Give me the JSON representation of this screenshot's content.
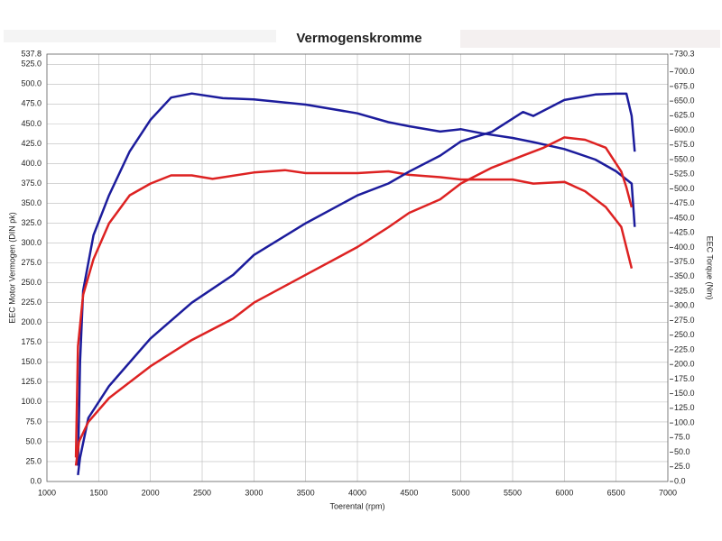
{
  "chart_data": {
    "type": "line",
    "title": "Vermogenskromme",
    "xlabel": "Toerental (rpm)",
    "ylabel": "EEC Motor Vermogen (DIN pk)",
    "y2label": "EEC Torque (Nm)",
    "xlim": [
      1000,
      7000
    ],
    "xticks": [
      1000,
      1500,
      2000,
      2500,
      3000,
      3500,
      4000,
      4500,
      5000,
      5500,
      6000,
      6500,
      7000
    ],
    "ylim": [
      0,
      537.8
    ],
    "yticks": [
      {
        "value": 0,
        "label": "0.0"
      },
      {
        "value": 25,
        "label": "25.0"
      },
      {
        "value": 50,
        "label": "50.0"
      },
      {
        "value": 75,
        "label": "75.0"
      },
      {
        "value": 100,
        "label": "100.0"
      },
      {
        "value": 125,
        "label": "125.0"
      },
      {
        "value": 150,
        "label": "150.0"
      },
      {
        "value": 175,
        "label": "175.0"
      },
      {
        "value": 200,
        "label": "200.0"
      },
      {
        "value": 225,
        "label": "225.0"
      },
      {
        "value": 250,
        "label": "250.0"
      },
      {
        "value": 275,
        "label": "275.0"
      },
      {
        "value": 300,
        "label": "300.0"
      },
      {
        "value": 325,
        "label": "325.0"
      },
      {
        "value": 350,
        "label": "350.0"
      },
      {
        "value": 375,
        "label": "375.0"
      },
      {
        "value": 400,
        "label": "400.0"
      },
      {
        "value": 425,
        "label": "425.0"
      },
      {
        "value": 450,
        "label": "450.0"
      },
      {
        "value": 475,
        "label": "475.0"
      },
      {
        "value": 500,
        "label": "500.0"
      },
      {
        "value": 525,
        "label": "525.0"
      },
      {
        "value": 537.8,
        "label": "537.8"
      }
    ],
    "y2lim": [
      0,
      730.3
    ],
    "y2ticks": [
      {
        "value": 0,
        "label": "0.0"
      },
      {
        "value": 25,
        "label": "25.0"
      },
      {
        "value": 50,
        "label": "50.0"
      },
      {
        "value": 75,
        "label": "75.0"
      },
      {
        "value": 100,
        "label": "100.0"
      },
      {
        "value": 125,
        "label": "125.0"
      },
      {
        "value": 150,
        "label": "150.0"
      },
      {
        "value": 175,
        "label": "175.0"
      },
      {
        "value": 200,
        "label": "200.0"
      },
      {
        "value": 225,
        "label": "225.0"
      },
      {
        "value": 250,
        "label": "250.0"
      },
      {
        "value": 275,
        "label": "275.0"
      },
      {
        "value": 300,
        "label": "300.0"
      },
      {
        "value": 325,
        "label": "325.0"
      },
      {
        "value": 350,
        "label": "350.0"
      },
      {
        "value": 375,
        "label": "375.0"
      },
      {
        "value": 400,
        "label": "400.0"
      },
      {
        "value": 425,
        "label": "425.0"
      },
      {
        "value": 450,
        "label": "450.0"
      },
      {
        "value": 475,
        "label": "475.0"
      },
      {
        "value": 500,
        "label": "500.0"
      },
      {
        "value": 525,
        "label": "525.0"
      },
      {
        "value": 550,
        "label": "550.0"
      },
      {
        "value": 575,
        "label": "575.0"
      },
      {
        "value": 600,
        "label": "600.0"
      },
      {
        "value": 625,
        "label": "625.0"
      },
      {
        "value": 650,
        "label": "650.0"
      },
      {
        "value": 675,
        "label": "675.0"
      },
      {
        "value": 700,
        "label": "700.0"
      },
      {
        "value": 730.3,
        "label": "730.3"
      }
    ],
    "grid": true,
    "series": [
      {
        "color": "#1c1c9c",
        "axis": "y2",
        "x": [
          1300,
          1320,
          1350,
          1450,
          1600,
          1800,
          2000,
          2200,
          2400,
          2700,
          3000,
          3500,
          4000,
          4300,
          4500,
          4800,
          5000,
          5200,
          5500,
          5700,
          6000,
          6300,
          6500,
          6650,
          6680
        ],
        "values": [
          27,
          204,
          326,
          421,
          489,
          564,
          618,
          656,
          663,
          655,
          653,
          644,
          629,
          614,
          607,
          598,
          602,
          595,
          587,
          580,
          568,
          550,
          530,
          509,
          435
        ]
      },
      {
        "color": "#dd2222",
        "axis": "y2",
        "x": [
          1280,
          1300,
          1350,
          1450,
          1600,
          1800,
          2000,
          2200,
          2400,
          2600,
          3000,
          3300,
          3500,
          4000,
          4300,
          4500,
          4800,
          5000,
          5500,
          5700,
          6000,
          6200,
          6400,
          6550,
          6650
        ],
        "values": [
          41,
          231,
          319,
          380,
          441,
          489,
          509,
          523,
          523,
          517,
          528,
          532,
          527,
          527,
          530,
          524,
          520,
          516,
          516,
          509,
          512,
          496,
          469,
          435,
          364
        ]
      },
      {
        "color": "#1c1c9c",
        "x": [
          1300,
          1320,
          1400,
          1600,
          2000,
          2400,
          2800,
          3000,
          3500,
          4000,
          4300,
          4500,
          4800,
          5000,
          5300,
          5600,
          5700,
          6000,
          6300,
          6500,
          6600,
          6650,
          6680
        ],
        "values": [
          8,
          30,
          80,
          120,
          180,
          225,
          260,
          285,
          325,
          360,
          375,
          390,
          410,
          428,
          440,
          465,
          460,
          480,
          487,
          488,
          488,
          460,
          415
        ]
      },
      {
        "color": "#dd2222",
        "x": [
          1280,
          1310,
          1400,
          1600,
          2000,
          2400,
          2800,
          3000,
          3500,
          4000,
          4300,
          4500,
          4800,
          5000,
          5300,
          5600,
          5800,
          6000,
          6200,
          6400,
          6550,
          6600,
          6650
        ],
        "values": [
          20,
          50,
          75,
          105,
          145,
          178,
          205,
          225,
          260,
          295,
          320,
          338,
          355,
          375,
          395,
          410,
          420,
          433,
          430,
          420,
          390,
          370,
          345
        ]
      }
    ]
  }
}
